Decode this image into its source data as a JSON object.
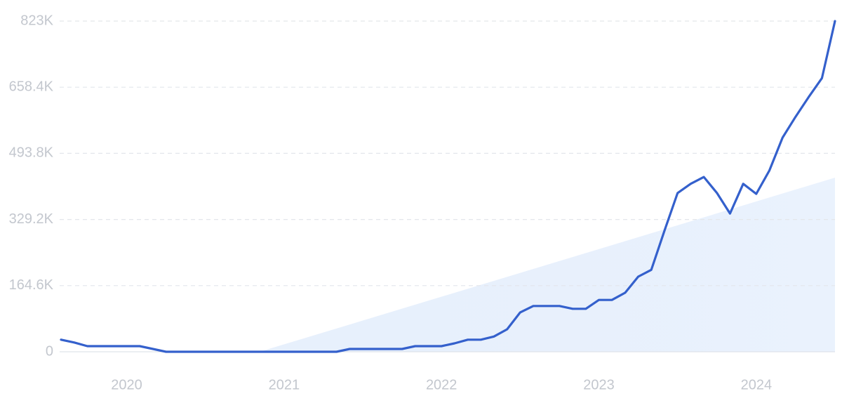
{
  "chart_data": {
    "type": "line",
    "x": [
      2019.583,
      2019.667,
      2019.75,
      2019.833,
      2019.917,
      2020.0,
      2020.083,
      2020.167,
      2020.25,
      2020.333,
      2020.417,
      2020.5,
      2020.583,
      2020.667,
      2020.75,
      2020.833,
      2020.917,
      2021.0,
      2021.083,
      2021.167,
      2021.25,
      2021.333,
      2021.417,
      2021.5,
      2021.583,
      2021.667,
      2021.75,
      2021.833,
      2021.917,
      2022.0,
      2022.083,
      2022.167,
      2022.25,
      2022.333,
      2022.417,
      2022.5,
      2022.583,
      2022.667,
      2022.75,
      2022.833,
      2022.917,
      2023.0,
      2023.083,
      2023.167,
      2023.25,
      2023.333,
      2023.417,
      2023.5,
      2023.583,
      2023.667,
      2023.75,
      2023.833,
      2023.917,
      2024.0,
      2024.083,
      2024.167,
      2024.25,
      2024.333,
      2024.417,
      2024.5
    ],
    "series": [
      {
        "color": "#3460cc",
        "values": [
          30000,
          23000,
          14000,
          14000,
          14000,
          14000,
          14000,
          7000,
          0,
          0,
          0,
          0,
          0,
          0,
          0,
          0,
          0,
          0,
          0,
          0,
          0,
          0,
          7000,
          7000,
          7000,
          7000,
          7000,
          14000,
          14000,
          14000,
          21000,
          30000,
          30000,
          38000,
          56000,
          98000,
          114000,
          114000,
          114000,
          107000,
          107000,
          129000,
          129000,
          147000,
          187000,
          204000,
          302000,
          395000,
          418000,
          435000,
          395000,
          344000,
          418000,
          393000,
          451000,
          533000,
          585000,
          634000,
          681000,
          823000
        ]
      }
    ],
    "xlim": [
      2019.583,
      2024.5
    ],
    "xticks": [
      2020,
      2021,
      2022,
      2023,
      2024
    ],
    "ylim": [
      0,
      823000
    ],
    "yticks": [
      0,
      {
        "value": 164600,
        "label": "164.6K"
      },
      {
        "value": 329200,
        "label": "329.2K"
      },
      {
        "value": 493800,
        "label": "493.8K"
      },
      {
        "value": 658400,
        "label": "658.4K"
      },
      {
        "value": 823000,
        "label": "823K"
      }
    ],
    "grid": true
  }
}
